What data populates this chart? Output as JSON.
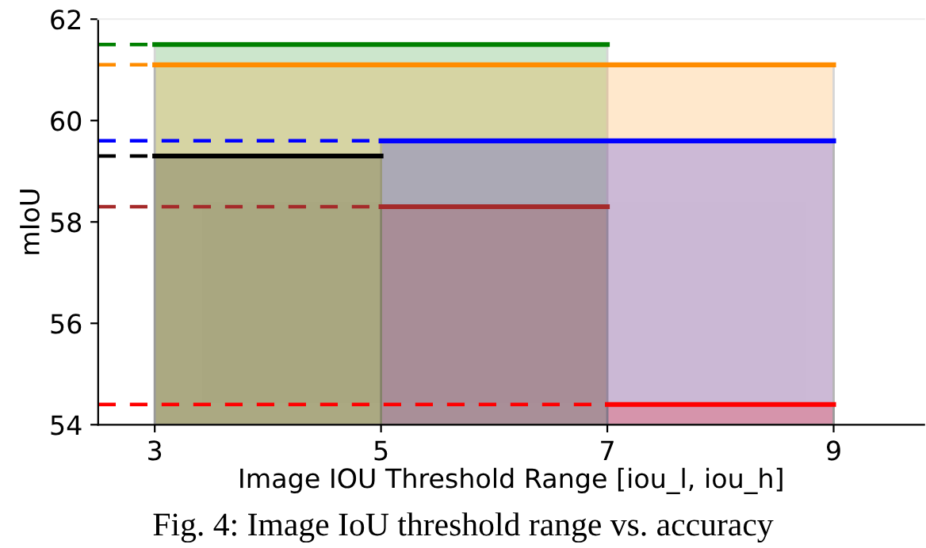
{
  "chart_data": {
    "type": "area",
    "xlabel": "Image IOU Threshold Range [iou_l, iou_h]",
    "ylabel": "mIoU",
    "xlim": [
      2.5,
      9.8
    ],
    "ylim": [
      54,
      62
    ],
    "xticks": [
      3,
      5,
      7,
      9
    ],
    "yticks": [
      54,
      56,
      58,
      60,
      62
    ],
    "grid": false,
    "legend": false,
    "series": [
      {
        "color": "#008000",
        "x": [
          3,
          7
        ],
        "values": [
          61.5,
          61.5
        ]
      },
      {
        "color": "#ff8c00",
        "x": [
          3,
          9
        ],
        "values": [
          61.1,
          61.1
        ]
      },
      {
        "color": "#000000",
        "x": [
          3,
          5
        ],
        "values": [
          59.3,
          59.3
        ]
      },
      {
        "color": "#0000ff",
        "x": [
          5,
          9
        ],
        "values": [
          59.6,
          59.6
        ]
      },
      {
        "color": "#a52a2a",
        "x": [
          5,
          7
        ],
        "values": [
          58.3,
          58.3
        ]
      },
      {
        "color": "#ff0000",
        "x": [
          7,
          9
        ],
        "values": [
          54.4,
          54.4
        ]
      },
      {
        "type": "line",
        "line_style": "dashed",
        "color": "#008000",
        "x": [
          2.5,
          3
        ],
        "values": [
          61.5,
          61.5
        ]
      },
      {
        "type": "line",
        "line_style": "dashed",
        "color": "#ff8c00",
        "x": [
          2.5,
          3
        ],
        "values": [
          61.1,
          61.1
        ]
      },
      {
        "type": "line",
        "line_style": "dashed",
        "color": "#000000",
        "x": [
          2.5,
          3
        ],
        "values": [
          59.3,
          59.3
        ]
      },
      {
        "type": "line",
        "line_style": "dashed",
        "color": "#0000ff",
        "x": [
          2.5,
          5
        ],
        "values": [
          59.6,
          59.6
        ]
      },
      {
        "type": "line",
        "line_style": "dashed",
        "color": "#a52a2a",
        "x": [
          2.5,
          5
        ],
        "values": [
          58.3,
          58.3
        ]
      },
      {
        "type": "line",
        "line_style": "dashed",
        "color": "#ff0000",
        "x": [
          2.5,
          7
        ],
        "values": [
          54.4,
          54.4
        ]
      }
    ],
    "annotations": [
      "Fig. 4: Image IoU threshold range vs. accuracy"
    ]
  }
}
